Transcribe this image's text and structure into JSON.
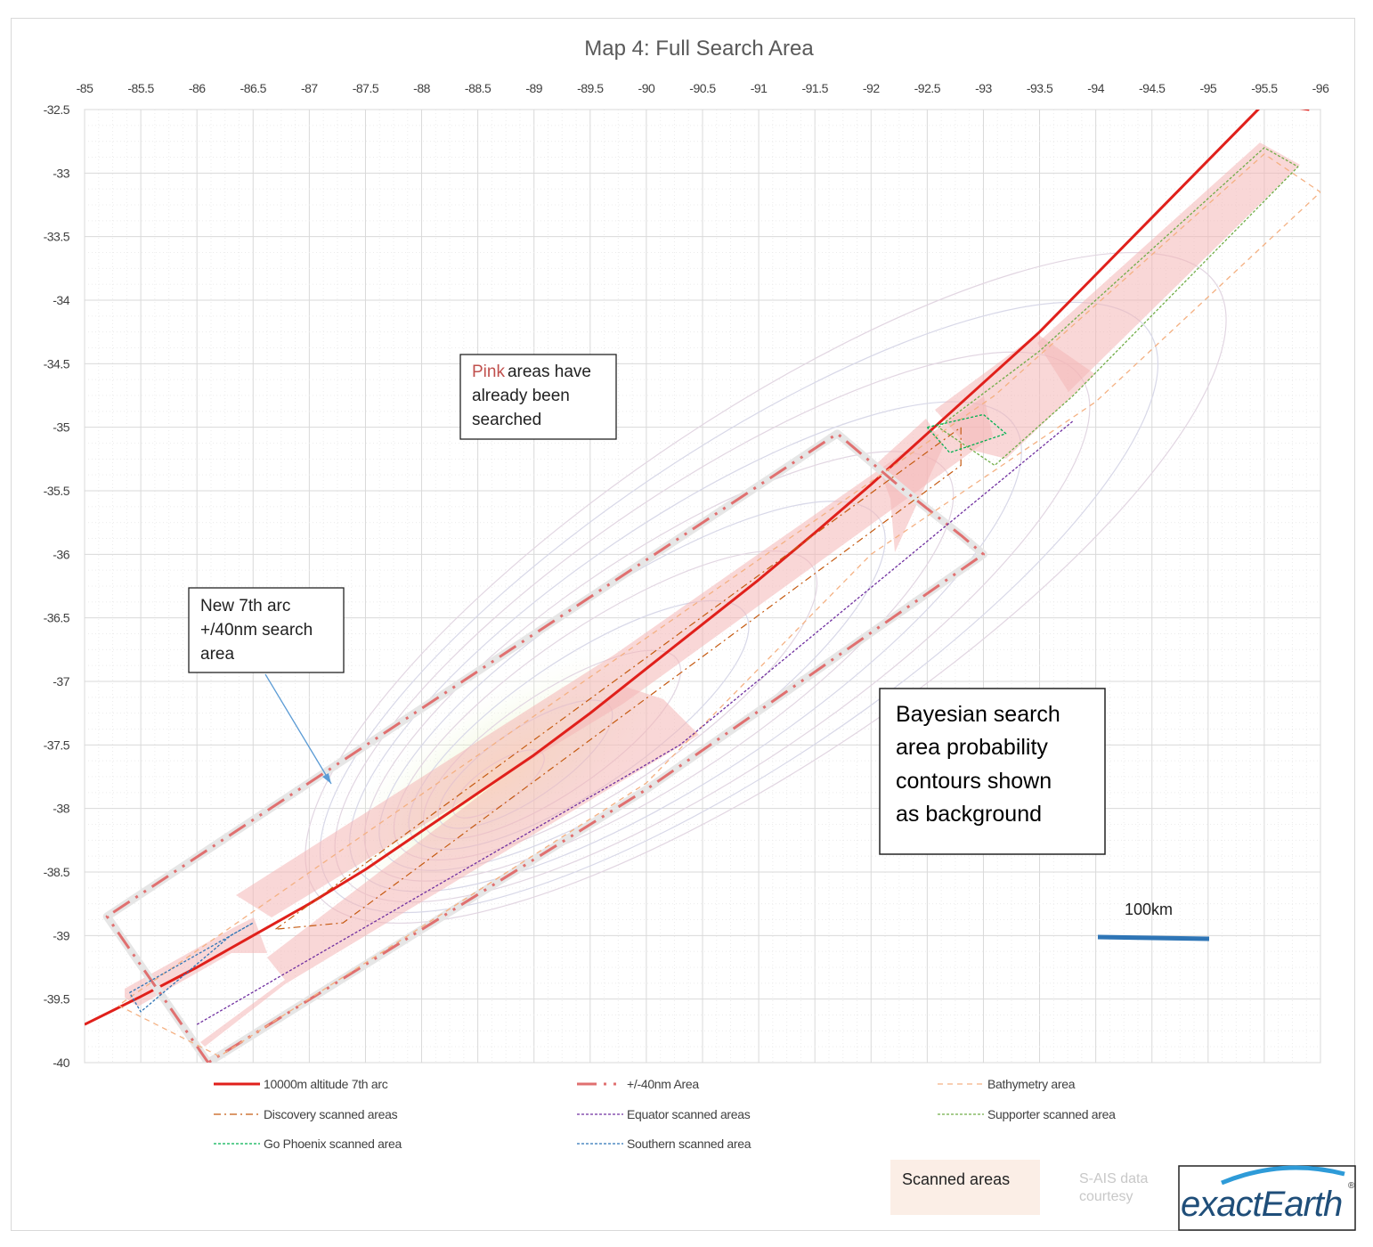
{
  "chart_data": {
    "type": "line",
    "title": "Map 4: Full Search Area",
    "x_ticks": [
      "-85",
      "-85.5",
      "-86",
      "-86.5",
      "-87",
      "-87.5",
      "-88",
      "-88.5",
      "-89",
      "-89.5",
      "-90",
      "-90.5",
      "-91",
      "-91.5",
      "-92",
      "-92.5",
      "-93",
      "-93.5",
      "-94",
      "-94.5",
      "-95",
      "-95.5",
      "-96"
    ],
    "y_ticks": [
      "-32.5",
      "-33",
      "-33.5",
      "-34",
      "-34.5",
      "-35",
      "-35.5",
      "-36",
      "-36.5",
      "-37",
      "-37.5",
      "-38",
      "-38.5",
      "-39",
      "-39.5",
      "-40"
    ],
    "xlim": [
      -85,
      -96
    ],
    "ylim": [
      -40,
      -32.5
    ],
    "grid": true,
    "legend_position": "bottom",
    "series": [
      {
        "name": "10000m altitude 7th arc",
        "color": "#e0201b",
        "x": [
          -85,
          -85.5,
          -86,
          -86.5,
          -87,
          -87.5,
          -88,
          -88.5,
          -89,
          -89.5,
          -90,
          -90.5,
          -91,
          -91.5,
          -92,
          -92.5,
          -93,
          -93.5,
          -94,
          -94.5,
          -95,
          -95.5,
          -95.9
        ],
        "y": [
          -39.7,
          -39.48,
          -39.25,
          -39.0,
          -38.75,
          -38.48,
          -38.18,
          -37.88,
          -37.58,
          -37.25,
          -36.9,
          -36.55,
          -36.2,
          -35.83,
          -35.45,
          -35.05,
          -34.65,
          -34.25,
          -33.8,
          -33.35,
          -32.9,
          -32.45,
          -32.5
        ]
      },
      {
        "name": "+/-40nm Area",
        "color": "#e07070",
        "x": [
          -86.1,
          -85.2,
          -91.7,
          -92.3,
          -92.8,
          -93.0,
          -90.0,
          -86.1
        ],
        "y": [
          -40.0,
          -38.85,
          -35.05,
          -35.5,
          -35.85,
          -36.0,
          -37.85,
          -40.0
        ]
      },
      {
        "name": "Bathymetry area",
        "color": "#f4b183",
        "x": [
          -86.2,
          -85.3,
          -93.1,
          -95.5,
          -96.0,
          -94.0,
          -92.0,
          -90.0,
          -86.2
        ],
        "y": [
          -39.95,
          -39.55,
          -34.75,
          -32.85,
          -33.15,
          -34.8,
          -36.0,
          -37.8,
          -39.95
        ]
      },
      {
        "name": "Discovery scanned areas",
        "color": "#c55a11",
        "x": [
          -86.7,
          -92.8,
          -92.8,
          -87.3,
          -86.7
        ],
        "y": [
          -38.95,
          -35.0,
          -35.3,
          -38.9,
          -38.95
        ]
      },
      {
        "name": "Equator scanned areas",
        "color": "#7030a0",
        "x": [
          -86.0,
          -90.3,
          -93.8
        ],
        "y": [
          -39.7,
          -37.5,
          -34.95
        ]
      },
      {
        "name": "Supporter scanned area",
        "color": "#70ad47",
        "x": [
          -92.6,
          -93.5,
          -95.5,
          -95.8,
          -93.8,
          -93.1,
          -92.6
        ],
        "y": [
          -35.0,
          -34.4,
          -32.8,
          -32.95,
          -34.75,
          -35.3,
          -35.0
        ]
      },
      {
        "name": "Go Phoenix scanned area",
        "color": "#00b050",
        "x": [
          -92.5,
          -93.0,
          -93.2,
          -92.7,
          -92.5
        ],
        "y": [
          -35.0,
          -34.9,
          -35.05,
          -35.2,
          -35.0
        ]
      },
      {
        "name": "Southern scanned area",
        "color": "#2e75b6",
        "x": [
          -85.4,
          -86.5,
          -86.3,
          -85.5,
          -85.4
        ],
        "y": [
          -39.45,
          -38.9,
          -39.0,
          -39.6,
          -39.45
        ]
      }
    ],
    "annotations": [
      {
        "pink": "Pink",
        "rest": "areas have",
        "line2": "already been",
        "line3": "searched"
      },
      {
        "line1": "New 7th arc",
        "line2": "+/40nm search",
        "line3": "area"
      },
      {
        "line1": "Bayesian search",
        "line2": "area probability",
        "line3": "contours shown",
        "line4": "as background"
      }
    ],
    "scale_bar": "100km"
  },
  "footer": {
    "scanned_label": "Scanned areas",
    "sais_line1": "S-AIS data",
    "sais_line2": "courtesy",
    "logo_text": "exactEarth"
  }
}
